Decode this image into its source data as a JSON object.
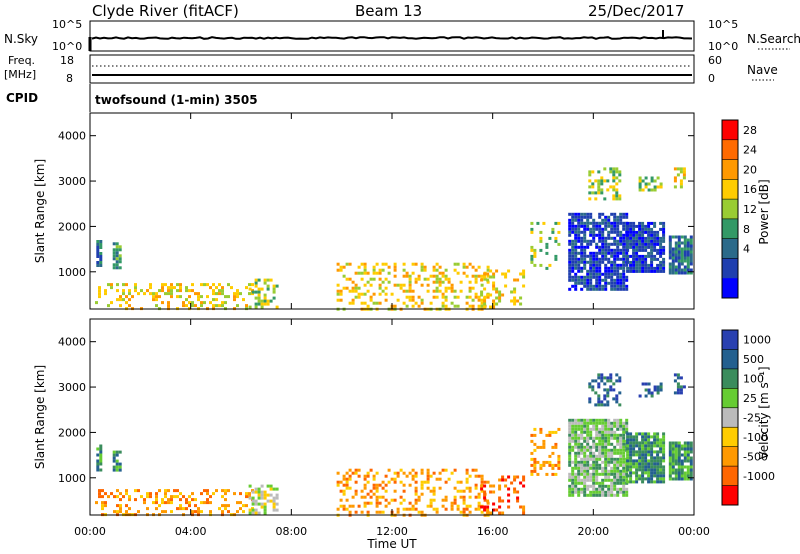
{
  "header": {
    "station": "Clyde River (fitACF)",
    "beam": "Beam 13",
    "date": "25/Dec/2017"
  },
  "status_panels": {
    "nsky_label": "N.Sky",
    "nsearch_label": "N.Search",
    "nsky_ticks": [
      "10^5",
      "10^0"
    ],
    "nsearch_ticks": [
      "10^5",
      "10^0"
    ],
    "freq_label": "Freq.",
    "freq_unit": "[MHz]",
    "freq_ticks": [
      "18",
      "8"
    ],
    "nave_label": "Nave",
    "nave_ticks": [
      "60",
      "0"
    ],
    "cpid_label": "CPID",
    "cpid_value": "twofsound (1-min) 3505"
  },
  "colorbars": {
    "power": {
      "label": "Power [dB]",
      "ticks": [
        "28",
        "24",
        "20",
        "16",
        "12",
        "8",
        "4"
      ],
      "colors": [
        "#ff0000",
        "#ff6a00",
        "#ff9900",
        "#ffcc00",
        "#99cc33",
        "#339966",
        "#2b6a8a",
        "#1f3faf",
        "#0000ff"
      ]
    },
    "velocity": {
      "label": "Velocity [m s⁻¹]",
      "ticks": [
        "1000",
        "500",
        "100",
        "25",
        "-25",
        "-100",
        "-500",
        "-1000"
      ],
      "colors": [
        "#2940b0",
        "#24608f",
        "#3a8c5c",
        "#66cc33",
        "#bbbbbb",
        "#ffcc00",
        "#ff9900",
        "#ff6600",
        "#ff0000"
      ]
    }
  },
  "chart_data": [
    {
      "type": "heatmap",
      "name": "power",
      "ylabel": "Slant Range [km]",
      "xlabel": "Time UT",
      "x_ticks": [
        "00:00",
        "04:00",
        "08:00",
        "12:00",
        "16:00",
        "20:00",
        "00:00"
      ],
      "y_ticks": [
        "4000",
        "3000",
        "2000",
        "1000"
      ],
      "x_range_hours": [
        0,
        24
      ],
      "y_range_km": [
        180,
        4500
      ],
      "scatter_regions": [
        {
          "t0": 0.25,
          "t1": 0.45,
          "r0": 1150,
          "r1": 1700,
          "level": 6,
          "density": 0.85
        },
        {
          "t0": 0.9,
          "t1": 1.25,
          "r0": 1100,
          "r1": 1650,
          "level": 5,
          "density": 0.7
        },
        {
          "t0": 0.2,
          "t1": 6.5,
          "r0": 200,
          "r1": 750,
          "level": 3,
          "density": 0.28
        },
        {
          "t0": 6.3,
          "t1": 7.4,
          "r0": 250,
          "r1": 850,
          "level": 4,
          "density": 0.45
        },
        {
          "t0": 9.8,
          "t1": 15.8,
          "r0": 200,
          "r1": 1200,
          "level": 3,
          "density": 0.3
        },
        {
          "t0": 15.5,
          "t1": 17.2,
          "r0": 250,
          "r1": 1050,
          "level": 3,
          "density": 0.3
        },
        {
          "t0": 17.5,
          "t1": 18.6,
          "r0": 1100,
          "r1": 2100,
          "level": 4,
          "density": 0.35
        },
        {
          "t0": 19.0,
          "t1": 21.3,
          "r0": 600,
          "r1": 2300,
          "level": 7,
          "density": 0.85
        },
        {
          "t0": 19.8,
          "t1": 21.0,
          "r0": 2600,
          "r1": 3300,
          "level": 4,
          "density": 0.4
        },
        {
          "t0": 21.8,
          "t1": 22.7,
          "r0": 2800,
          "r1": 3100,
          "level": 4,
          "density": 0.45
        },
        {
          "t0": 21.3,
          "t1": 22.8,
          "r0": 1000,
          "r1": 2100,
          "level": 7,
          "density": 0.85
        },
        {
          "t0": 23.0,
          "t1": 23.9,
          "r0": 950,
          "r1": 1800,
          "level": 6,
          "density": 0.85
        },
        {
          "t0": 23.2,
          "t1": 23.6,
          "r0": 2900,
          "r1": 3300,
          "level": 3,
          "density": 0.4
        }
      ]
    },
    {
      "type": "heatmap",
      "name": "velocity",
      "ylabel": "Slant Range [km]",
      "xlabel": "Time UT",
      "x_ticks": [
        "00:00",
        "04:00",
        "08:00",
        "12:00",
        "16:00",
        "20:00",
        "00:00"
      ],
      "y_ticks": [
        "4000",
        "3000",
        "2000",
        "1000"
      ],
      "x_range_hours": [
        0,
        24
      ],
      "y_range_km": [
        180,
        4500
      ],
      "scatter_regions": [
        {
          "t0": 0.25,
          "t1": 0.45,
          "r0": 1150,
          "r1": 1800,
          "level": 2,
          "density": 0.85
        },
        {
          "t0": 0.9,
          "t1": 1.25,
          "r0": 1150,
          "r1": 1600,
          "level": 2,
          "density": 0.7
        },
        {
          "t0": 0.2,
          "t1": 6.5,
          "r0": 200,
          "r1": 750,
          "level": 6,
          "density": 0.3
        },
        {
          "t0": 6.3,
          "t1": 7.4,
          "r0": 250,
          "r1": 850,
          "level": 4,
          "density": 0.45
        },
        {
          "t0": 9.8,
          "t1": 15.8,
          "r0": 200,
          "r1": 1200,
          "level": 6,
          "density": 0.3
        },
        {
          "t0": 15.5,
          "t1": 17.2,
          "r0": 250,
          "r1": 1050,
          "level": 7,
          "density": 0.3
        },
        {
          "t0": 17.5,
          "t1": 18.6,
          "r0": 1100,
          "r1": 2100,
          "level": 6,
          "density": 0.35
        },
        {
          "t0": 19.0,
          "t1": 21.3,
          "r0": 600,
          "r1": 2300,
          "level": 3,
          "density": 0.85
        },
        {
          "t0": 19.8,
          "t1": 21.0,
          "r0": 2600,
          "r1": 3300,
          "level": 1,
          "density": 0.4
        },
        {
          "t0": 21.8,
          "t1": 22.7,
          "r0": 2800,
          "r1": 3100,
          "level": 1,
          "density": 0.45
        },
        {
          "t0": 21.3,
          "t1": 22.8,
          "r0": 900,
          "r1": 2000,
          "level": 2,
          "density": 0.9
        },
        {
          "t0": 23.0,
          "t1": 23.9,
          "r0": 950,
          "r1": 1800,
          "level": 2,
          "density": 0.9
        },
        {
          "t0": 23.2,
          "t1": 23.6,
          "r0": 2900,
          "r1": 3300,
          "level": 1,
          "density": 0.4
        }
      ]
    }
  ]
}
